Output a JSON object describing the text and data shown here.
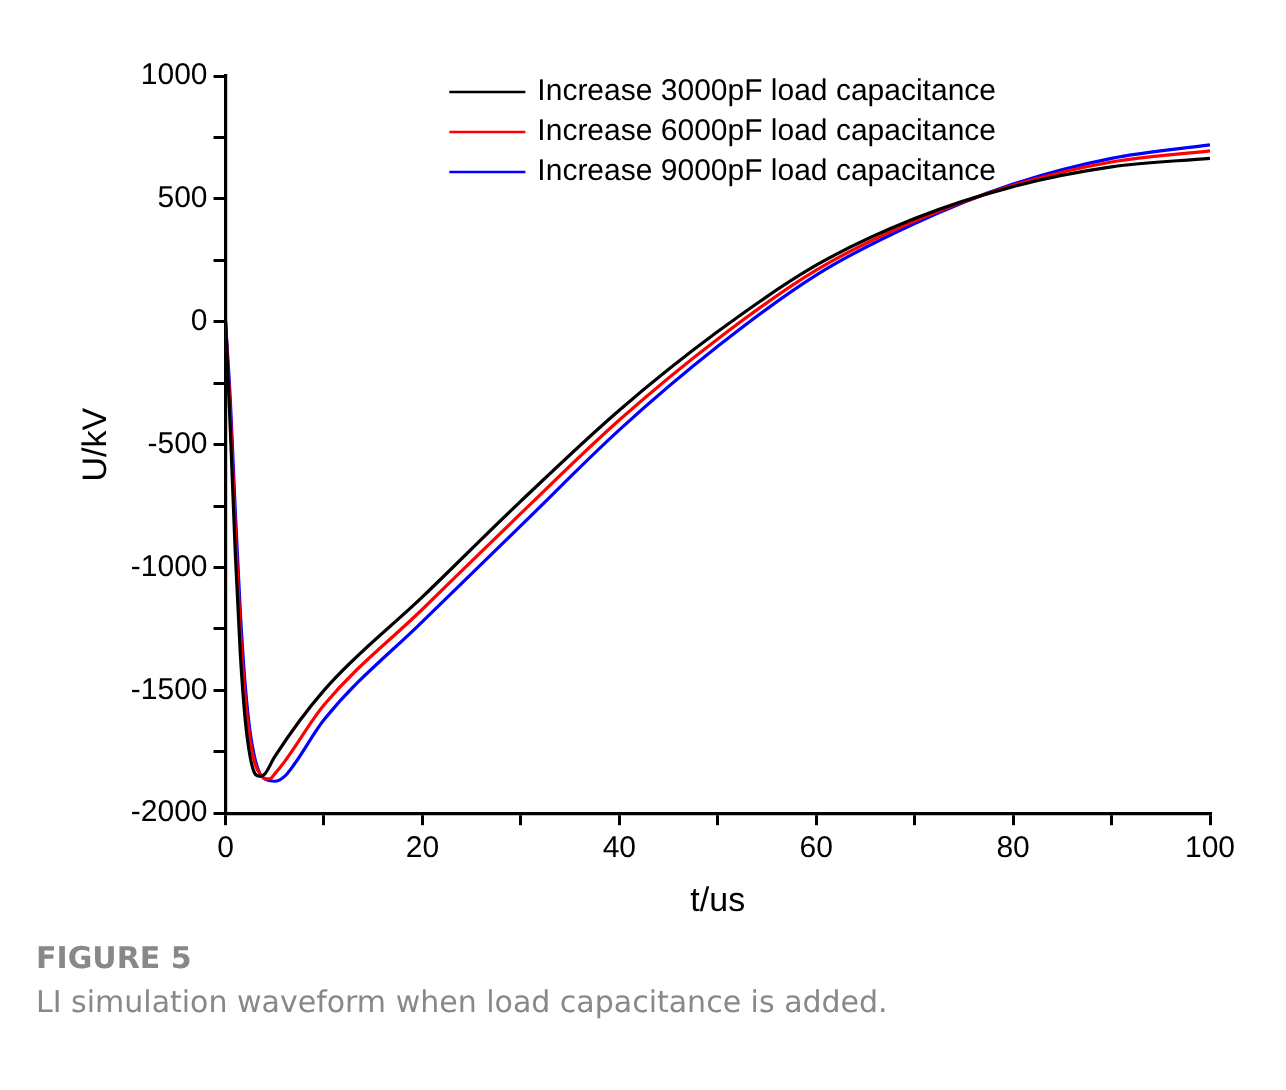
{
  "chart_data": {
    "type": "line",
    "xlabel": "t/us",
    "ylabel": "U/kV",
    "xlim": [
      0,
      100
    ],
    "ylim": [
      -2000,
      1000
    ],
    "xticks": [
      0,
      {
        "value": 10,
        "label": null
      },
      20,
      {
        "value": 30,
        "label": null
      },
      40,
      {
        "value": 50,
        "label": null
      },
      60,
      {
        "value": 70,
        "label": null
      },
      80,
      {
        "value": 90,
        "label": null
      },
      100
    ],
    "yticks": [
      -2000,
      {
        "value": -1750,
        "label": null
      },
      -1500,
      {
        "value": -1250,
        "label": null
      },
      -1000,
      {
        "value": -750,
        "label": null
      },
      -500,
      {
        "value": -250,
        "label": null
      },
      0,
      {
        "value": 250,
        "label": null
      },
      500,
      {
        "value": 750,
        "label": null
      },
      1000
    ],
    "grid": false,
    "legend": "top right",
    "marker": "none",
    "line_style": "solid",
    "series": [
      {
        "name": "Increase 3000pF load capacitance",
        "color": "#000000",
        "x": [
          0,
          0.5,
          1,
          1.5,
          2,
          2.5,
          3,
          3.5,
          4,
          5,
          10,
          20,
          30,
          40,
          50,
          60,
          70,
          80,
          90,
          100
        ],
        "values": [
          0,
          -450,
          -950,
          -1350,
          -1620,
          -1770,
          -1840,
          -1850,
          -1840,
          -1770,
          -1500,
          -1120,
          -730,
          -360,
          -40,
          230,
          420,
          550,
          630,
          665
        ]
      },
      {
        "name": "Increase 6000pF load capacitance",
        "color": "#ff0000",
        "x": [
          0,
          0.5,
          1,
          1.5,
          2,
          2.5,
          3,
          3.5,
          4,
          4.5,
          5,
          6,
          10,
          20,
          30,
          40,
          50,
          60,
          70,
          80,
          90,
          100
        ],
        "values": [
          0,
          -380,
          -850,
          -1250,
          -1530,
          -1700,
          -1800,
          -1840,
          -1860,
          -1860,
          -1840,
          -1790,
          -1560,
          -1170,
          -780,
          -400,
          -70,
          210,
          410,
          555,
          650,
          695
        ]
      },
      {
        "name": "Increase 9000pF load capacitance",
        "color": "#0000ff",
        "x": [
          0,
          0.5,
          1,
          1.5,
          2,
          2.5,
          3,
          3.5,
          4,
          5,
          6,
          7,
          10,
          20,
          30,
          40,
          50,
          60,
          70,
          80,
          90,
          100
        ],
        "values": [
          0,
          -330,
          -780,
          -1180,
          -1480,
          -1670,
          -1780,
          -1840,
          -1860,
          -1870,
          -1850,
          -1800,
          -1620,
          -1220,
          -830,
          -440,
          -100,
          190,
          400,
          560,
          665,
          720
        ]
      }
    ],
    "annotations": [
      "FIGURE 5",
      "LI simulation waveform when load capacitance is added."
    ]
  }
}
